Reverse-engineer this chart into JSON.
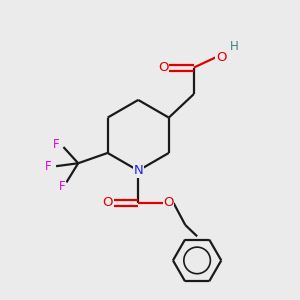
{
  "background_color": "#ebebeb",
  "bond_color": "#1a1a1a",
  "N_color": "#2020ff",
  "O_color": "#e00000",
  "F_color": "#e000e0",
  "H_color": "#408080",
  "figsize": [
    3.0,
    3.0
  ],
  "dpi": 100,
  "xlim": [
    0,
    10
  ],
  "ylim": [
    0,
    10
  ]
}
